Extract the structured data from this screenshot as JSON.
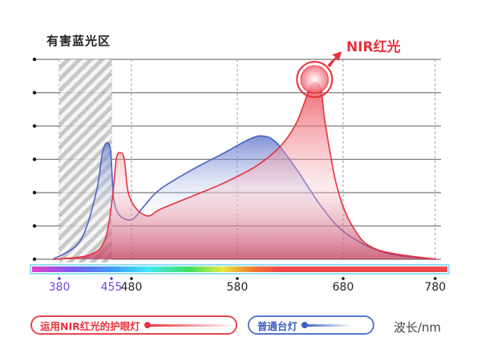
{
  "chart_data": {
    "type": "area",
    "title": "有害蓝光区",
    "xlabel": "波长/nm",
    "ylabel": "",
    "x_ticks": [
      380,
      455,
      480,
      580,
      680,
      780
    ],
    "x_ticks_highlighted": [
      380,
      455
    ],
    "xlim": [
      373,
      781
    ],
    "ylim": [
      0,
      6
    ],
    "y_gridlines": 7,
    "grid": true,
    "shaded_region": {
      "label": "有害蓝光区",
      "x_range": [
        380,
        455
      ],
      "pattern": "hatched"
    },
    "annotation": {
      "text": "NIR红光",
      "x": 653,
      "y": 5.3
    },
    "legend_position": "bottom",
    "series": [
      {
        "name": "运用NIR红光的护眼灯",
        "color": "#e8313c",
        "x": [
          373,
          422,
          445,
          456,
          461,
          466,
          471,
          476,
          485,
          496,
          507,
          538,
          568,
          598,
          621,
          636,
          648,
          653,
          659,
          663,
          674,
          690,
          716,
          781
        ],
        "y": [
          0,
          0.12,
          0.55,
          1.8,
          3.0,
          3.2,
          3.0,
          2.0,
          1.5,
          1.3,
          1.5,
          1.9,
          2.3,
          2.8,
          3.4,
          4.1,
          5.1,
          5.3,
          5.1,
          4.1,
          2.2,
          1.0,
          0.3,
          0
        ]
      },
      {
        "name": "普通台灯",
        "color": "#4a62c4",
        "x": [
          373,
          410,
          433,
          442,
          449,
          454,
          458,
          466,
          481,
          492,
          507,
          538,
          568,
          591,
          604,
          617,
          636,
          659,
          682,
          725,
          781
        ],
        "y": [
          0,
          0.55,
          2.0,
          3.2,
          3.5,
          3.2,
          1.8,
          1.3,
          1.2,
          1.6,
          2.1,
          2.7,
          3.2,
          3.6,
          3.7,
          3.5,
          2.7,
          1.6,
          0.8,
          0.2,
          0
        ]
      }
    ]
  },
  "unit_label": "波长/nm"
}
